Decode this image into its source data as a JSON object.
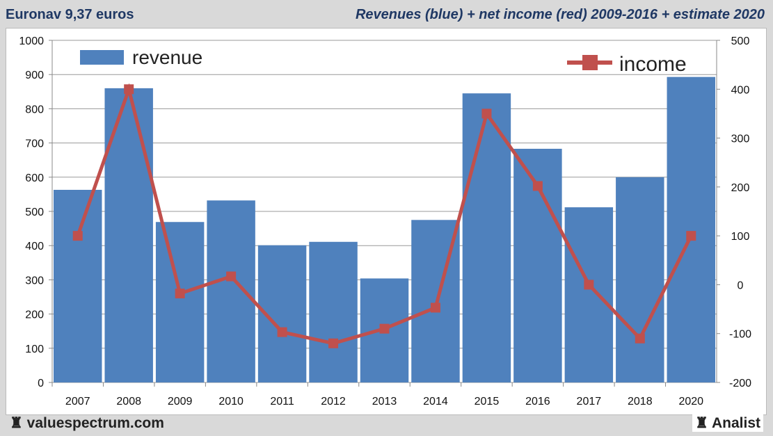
{
  "header": {
    "left_title": "Euronav 9,37 euros",
    "right_title": "Revenues (blue) + net income (red) 2009-2016 + estimate 2020"
  },
  "footer": {
    "left": "valuespectrum.com",
    "right": "Analist"
  },
  "chart_data": {
    "type": "bar+line",
    "categories": [
      "2007",
      "2008",
      "2009",
      "2010",
      "2011",
      "2012",
      "2013",
      "2014",
      "2015",
      "2016",
      "2017",
      "2018",
      "2020"
    ],
    "series": [
      {
        "name": "revenue",
        "type": "bar",
        "axis": "left",
        "color": "#4f81bd",
        "values": [
          563,
          860,
          469,
          532,
          401,
          411,
          304,
          475,
          845,
          683,
          512,
          600,
          893
        ]
      },
      {
        "name": "income",
        "type": "line",
        "axis": "right",
        "color": "#c0504d",
        "values": [
          100,
          400,
          -18,
          17,
          -97,
          -120,
          -90,
          -47,
          350,
          202,
          0,
          -110,
          100
        ]
      }
    ],
    "left_axis": {
      "range": [
        0,
        1000
      ],
      "ticks": [
        0,
        100,
        200,
        300,
        400,
        500,
        600,
        700,
        800,
        900,
        1000
      ]
    },
    "right_axis": {
      "range": [
        -200,
        500
      ],
      "ticks": [
        -200,
        -100,
        0,
        100,
        200,
        300,
        400,
        500
      ]
    },
    "grid": true,
    "legend": [
      "top-left: revenue",
      "top-right: income"
    ]
  }
}
